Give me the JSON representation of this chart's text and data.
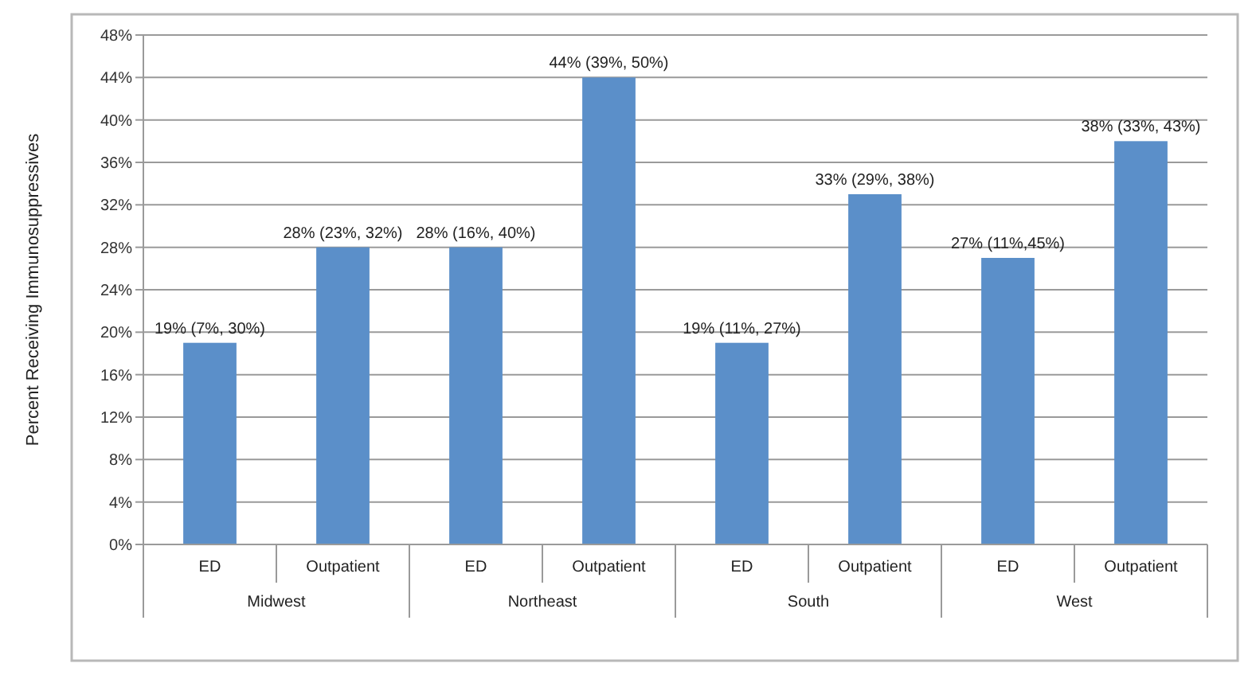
{
  "chart_data": {
    "type": "bar",
    "ylabel": "Percent Receiving Immunosuppressives",
    "categories": [
      "ED",
      "Outpatient",
      "ED",
      "Outpatient",
      "ED",
      "Outpatient",
      "ED",
      "Outpatient"
    ],
    "values": [
      19,
      28,
      28,
      44,
      19,
      33,
      27,
      38
    ],
    "value_labels": [
      "19% (7%, 30%)",
      "28% (23%, 32%)",
      "28% (16%, 40%)",
      "44% (39%, 50%)",
      "19% (11%, 27%)",
      "33% (29%, 38%)",
      "27% (11%,45%)",
      "38% (33%, 43%)"
    ],
    "color": "#5b8fc9",
    "annotations": [
      "Midwest",
      "Northeast",
      "South",
      "West"
    ],
    "ylim": [
      0,
      48
    ],
    "yticks": [
      {
        "value": 0,
        "label": "0%"
      },
      {
        "value": 4,
        "label": "4%"
      },
      {
        "value": 8,
        "label": "8%"
      },
      {
        "value": 12,
        "label": "12%"
      },
      {
        "value": 16,
        "label": "16%"
      },
      {
        "value": 20,
        "label": "20%"
      },
      {
        "value": 24,
        "label": "24%"
      },
      {
        "value": 28,
        "label": "28%"
      },
      {
        "value": 32,
        "label": "32%"
      },
      {
        "value": 36,
        "label": "36%"
      },
      {
        "value": 40,
        "label": "40%"
      },
      {
        "value": 44,
        "label": "44%"
      },
      {
        "value": 48,
        "label": "48%"
      }
    ],
    "grid": "y"
  }
}
